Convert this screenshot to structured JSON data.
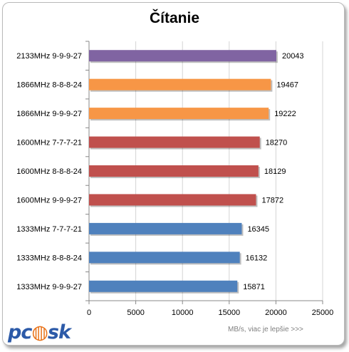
{
  "chart_data": {
    "type": "bar",
    "orientation": "horizontal",
    "title": "Čítanie",
    "xlabel": "MB/s, viac je lepšie >>>",
    "ylabel": "",
    "xlim": [
      0,
      25000
    ],
    "x_ticks": [
      0,
      5000,
      10000,
      15000,
      20000,
      25000
    ],
    "grid": true,
    "categories": [
      "2133MHz 9-9-9-27",
      "1866MHz 8-8-8-24",
      "1866MHz 9-9-9-27",
      "1600MHz 7-7-7-21",
      "1600MHz 8-8-8-24",
      "1600MHz 9-9-9-27",
      "1333MHz 7-7-7-21",
      "1333MHz 8-8-8-24",
      "1333MHz 9-9-9-27"
    ],
    "values": [
      20043,
      19467,
      19222,
      18270,
      18129,
      17872,
      16345,
      16132,
      15871
    ],
    "colors": [
      "#8064a2",
      "#f79646",
      "#f79646",
      "#c0504d",
      "#c0504d",
      "#c0504d",
      "#4f81bd",
      "#4f81bd",
      "#4f81bd"
    ]
  },
  "logo": {
    "text": "pcask"
  }
}
